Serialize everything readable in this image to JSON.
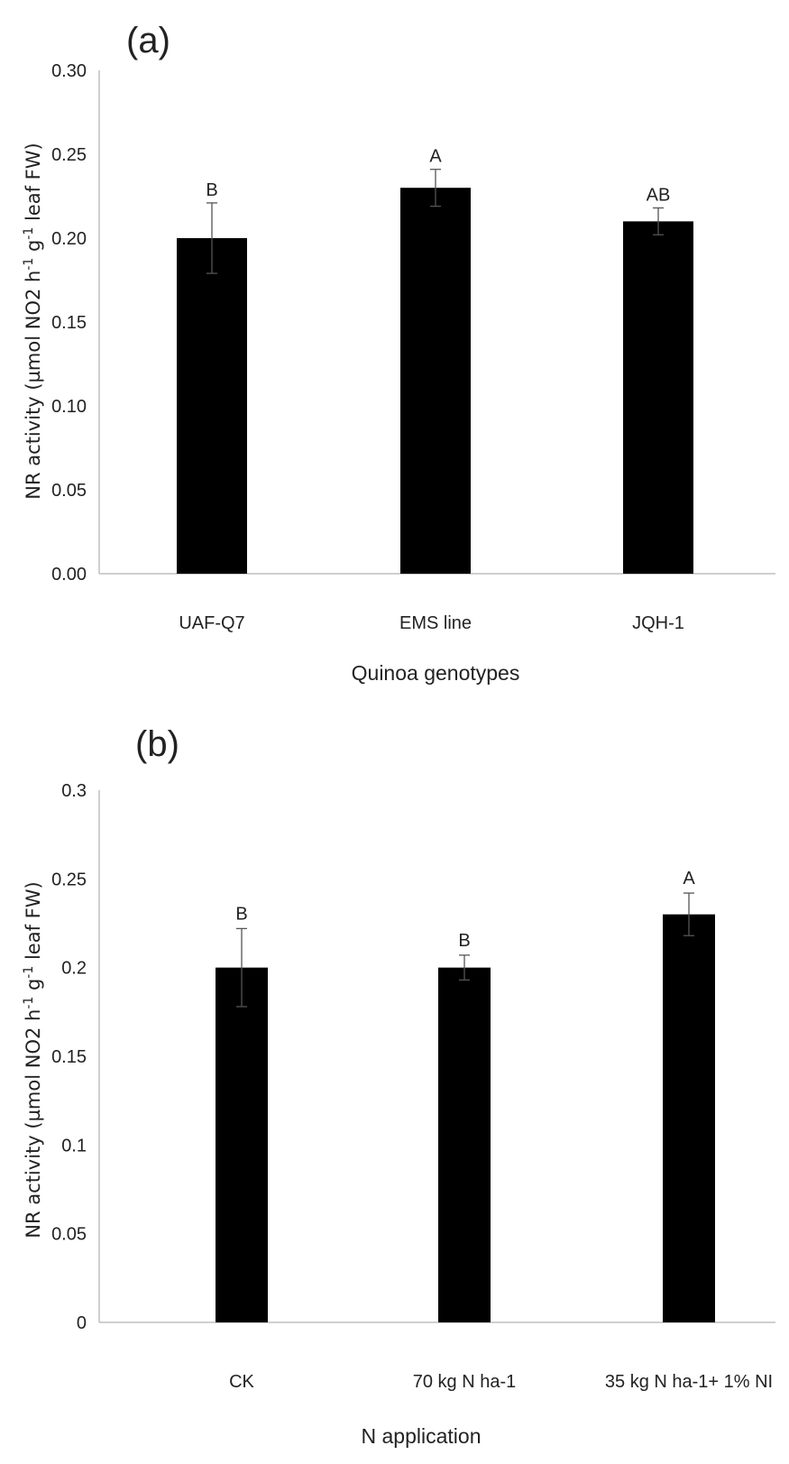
{
  "chart_data": [
    {
      "type": "bar",
      "panel_label": "(a)",
      "categories": [
        "UAF-Q7",
        "EMS line",
        "JQH-1"
      ],
      "values": [
        0.2,
        0.23,
        0.21
      ],
      "error_bars": [
        0.021,
        0.011,
        0.008
      ],
      "significance_letters": [
        "B",
        "A",
        "AB"
      ],
      "xlabel": "Quinoa genotypes",
      "ylabel": {
        "parts": [
          "NR activity (µmol NO2 h",
          "-1",
          " g",
          "-1",
          " leaf FW)"
        ]
      },
      "ylim": [
        0,
        0.3
      ],
      "yticks": [
        "0.00",
        "0.05",
        "0.10",
        "0.15",
        "0.20",
        "0.25",
        "0.30"
      ],
      "grid": false,
      "bar_color": "#000000"
    },
    {
      "type": "bar",
      "panel_label": "(b)",
      "categories": [
        "CK",
        "70 kg N ha-1",
        "35 kg N ha-1+ 1% NI"
      ],
      "values": [
        0.2,
        0.2,
        0.23
      ],
      "error_bars": [
        0.022,
        0.007,
        0.012
      ],
      "significance_letters": [
        "B",
        "B",
        "A"
      ],
      "xlabel": "N application",
      "ylabel": {
        "parts": [
          "NR activity (µmol NO2 h",
          "-1",
          " g",
          "-1",
          " leaf FW)"
        ]
      },
      "ylim": [
        0,
        0.3
      ],
      "yticks": [
        "0",
        "0.05",
        "0.1",
        "0.15",
        "0.2",
        "0.25",
        "0.3"
      ],
      "grid": false,
      "bar_color": "#000000"
    }
  ]
}
